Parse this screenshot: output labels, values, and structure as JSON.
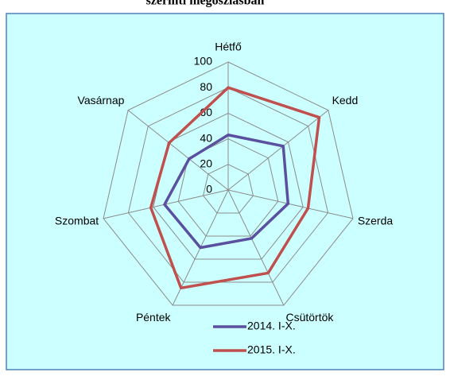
{
  "chart_data": {
    "type": "radar",
    "title": "szerinti megoszlásban",
    "categories": [
      "Hétfő",
      "Kedd",
      "Szerda",
      "Csütörtök",
      "Péntek",
      "Szombat",
      "Vasárnap"
    ],
    "series": [
      {
        "name": "2014. I-X.",
        "color": "#5b4fa0",
        "values": [
          43,
          55,
          48,
          42,
          50,
          51,
          39
        ]
      },
      {
        "name": "2015. I-X.",
        "color": "#c0504d",
        "values": [
          80,
          91,
          64,
          72,
          85,
          62,
          59
        ]
      }
    ],
    "ylim": [
      0,
      100
    ],
    "yticks": [
      0,
      20,
      40,
      60,
      80,
      100
    ],
    "grid": true
  }
}
